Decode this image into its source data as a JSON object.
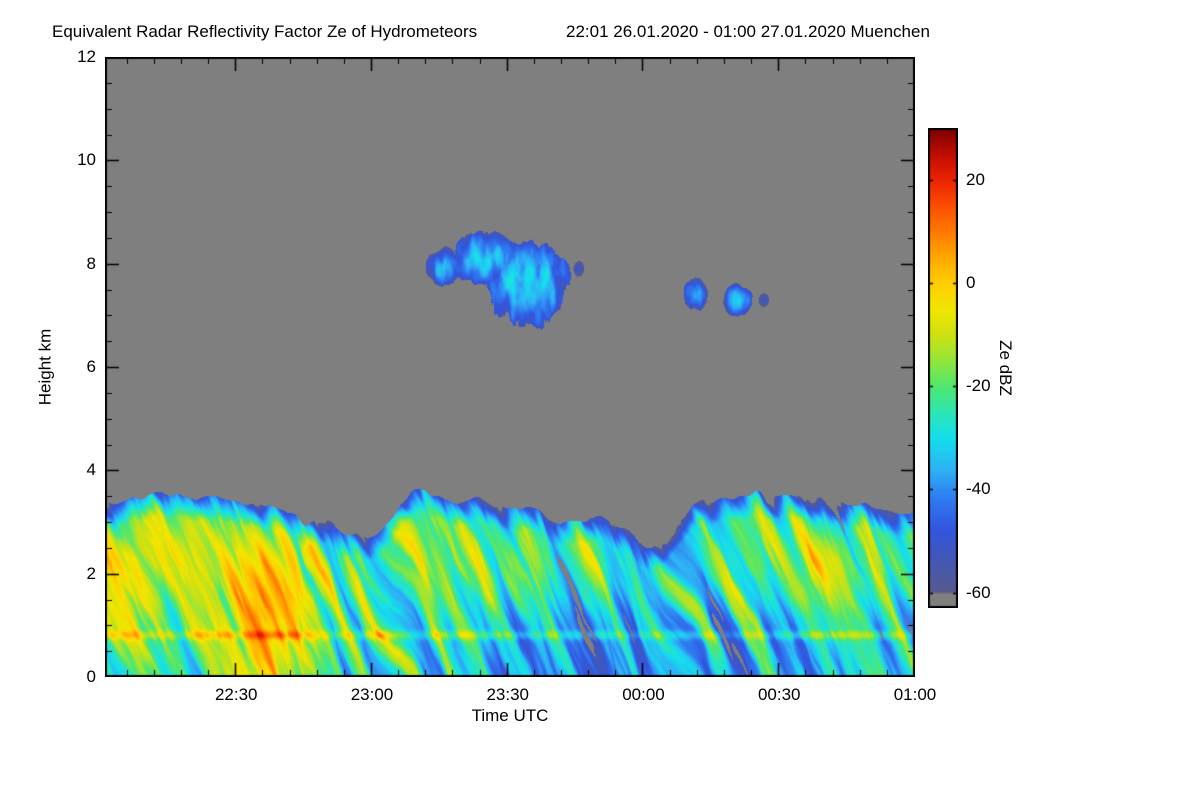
{
  "header": {
    "title": "Equivalent Radar Reflectivity Factor Ze of Hydrometeors",
    "date_range": "22:01 26.01.2020 - 01:00 27.01.2020 Muenchen"
  },
  "chart_data": {
    "type": "heatmap",
    "title": "Equivalent Radar Reflectivity Factor Ze of Hydrometeors",
    "subtitle": "22:01 26.01.2020 - 01:00 27.01.2020 Muenchen",
    "location": "Muenchen",
    "time_start": "22:01 26.01.2020",
    "time_end": "01:00 27.01.2020",
    "xlabel": "Time UTC",
    "ylabel": "Height km",
    "x_range_minutes": [
      0,
      179
    ],
    "ylim_km": [
      0,
      12
    ],
    "x_ticks": [
      {
        "label": "22:30",
        "minutes": 29
      },
      {
        "label": "23:00",
        "minutes": 59
      },
      {
        "label": "23:30",
        "minutes": 89
      },
      {
        "label": "00:00",
        "minutes": 119
      },
      {
        "label": "00:30",
        "minutes": 149
      },
      {
        "label": "01:00",
        "minutes": 179
      }
    ],
    "y_ticks": [
      {
        "label": "0",
        "km": 0
      },
      {
        "label": "2",
        "km": 2
      },
      {
        "label": "4",
        "km": 4
      },
      {
        "label": "6",
        "km": 6
      },
      {
        "label": "8",
        "km": 8
      },
      {
        "label": "10",
        "km": 10
      },
      {
        "label": "12",
        "km": 12
      }
    ],
    "x_minor_step_minutes": 6,
    "y_minor_step_km": 0.5,
    "colorbar": {
      "label": "Ze dBZ",
      "vmin": -63,
      "vmax": 30,
      "ticks": [
        {
          "label": "20",
          "value": 20
        },
        {
          "label": "0",
          "value": 0
        },
        {
          "label": "-20",
          "value": -20
        },
        {
          "label": "-40",
          "value": -40
        },
        {
          "label": "-60",
          "value": -60
        }
      ]
    },
    "no_echo_color": "#7f7f7f",
    "colormap": {
      "stops": [
        [
          -63,
          "#7f7f7f"
        ],
        [
          -60.2,
          "#7f7f7f"
        ],
        [
          -59.8,
          "#565b8e"
        ],
        [
          -54,
          "#4458b4"
        ],
        [
          -48,
          "#3355de"
        ],
        [
          -42,
          "#2f7af0"
        ],
        [
          -36,
          "#2eb3f5"
        ],
        [
          -30,
          "#14dfec"
        ],
        [
          -25,
          "#2ee6b4"
        ],
        [
          -20,
          "#50e66e"
        ],
        [
          -15,
          "#93e63c"
        ],
        [
          -10,
          "#cfe112"
        ],
        [
          -5,
          "#f2e600"
        ],
        [
          0,
          "#ffcf00"
        ],
        [
          5,
          "#ffa800"
        ],
        [
          10,
          "#ff7a00"
        ],
        [
          15,
          "#fc4f00"
        ],
        [
          20,
          "#ec2400"
        ],
        [
          25,
          "#c00d00"
        ],
        [
          30,
          "#7c0000"
        ]
      ]
    },
    "features": {
      "precip_band": {
        "description": "Continuous low-level precipitation/cloud layer from surface to about 3.0-3.5 km across the whole time range with tilted fallstreaks from about -55 to +20 dBZ",
        "top_km_base": 3.22,
        "top_rise_per_min": 0.0012,
        "shear_min_per_km": 5,
        "mean_dbz": -34,
        "spread_dbz": 75,
        "pocket_amp_dbz": 16,
        "mid_brighten_dbz": 10,
        "mid_brighten_center_km": 2.1,
        "edge_fade_dbz": 24,
        "edge_fade_depth_km": 0.45,
        "melting_layer_km": 0.82,
        "melting_layer_amp_dbz": 15,
        "hole_threshold": 0.18,
        "top_dips": [
          {
            "t": 57,
            "w": 5,
            "d": 0.5
          },
          {
            "t": 122,
            "w": 5,
            "d": 0.75
          },
          {
            "t": 100,
            "w": 3.5,
            "d": 0.3
          },
          {
            "t": 44,
            "w": 2.5,
            "d": 0.25
          }
        ]
      },
      "hot_regions": [
        {
          "t": 7,
          "h": 2.4,
          "rt": 11,
          "rh": 0.9,
          "amp": 14
        },
        {
          "t": 35,
          "h": 1.1,
          "rt": 5,
          "rh": 1.2,
          "amp": 18
        },
        {
          "t": 88,
          "h": 2.2,
          "rt": 14,
          "rh": 0.9,
          "amp": 7
        },
        {
          "t": 153,
          "h": 2.5,
          "rt": 13,
          "rh": 0.85,
          "amp": 13
        }
      ],
      "clouds": [
        {
          "t": 84,
          "h": 8.1,
          "rt": 8,
          "rh": 0.5,
          "vmax": -33
        },
        {
          "t": 93,
          "h": 7.6,
          "rt": 9.5,
          "rh": 0.8,
          "vmax": -31
        },
        {
          "t": 75,
          "h": 7.95,
          "rt": 4,
          "rh": 0.35,
          "vmax": -38
        },
        {
          "t": 104.5,
          "h": 7.9,
          "rt": 1.2,
          "rh": 0.16,
          "vmax": -46
        },
        {
          "t": 130.5,
          "h": 7.4,
          "rt": 2.6,
          "rh": 0.3,
          "vmax": -36
        },
        {
          "t": 139.5,
          "h": 7.3,
          "rt": 3.2,
          "rh": 0.3,
          "vmax": -35
        },
        {
          "t": 145.5,
          "h": 7.3,
          "rt": 1.1,
          "rh": 0.14,
          "vmax": -45
        }
      ]
    },
    "description": "Time-height cloud radar reflectivity quicklook: precipitation layer below ~3.3 km for the whole period, a mid-level cloud patch near 7-8.6 km around 23:10-23:45 UTC, smaller cloud patches near 7.3 km around 00:10-00:25 UTC; gray background means no echo."
  }
}
